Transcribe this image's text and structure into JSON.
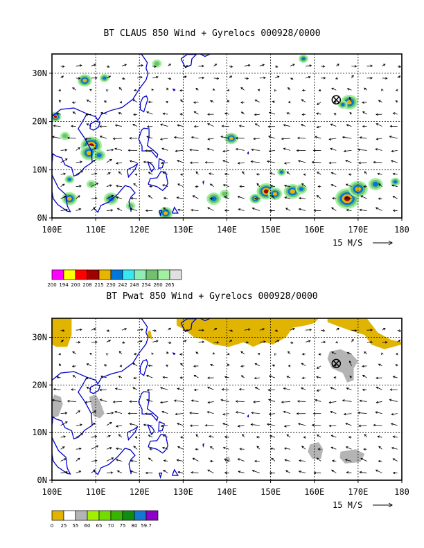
{
  "panels": [
    {
      "title": "BT CLAUS 850 Wind + Gyrelocs 000928/0000",
      "lat_labels": [
        "30N",
        "20N",
        "10N",
        "0N"
      ],
      "lon_labels": [
        "100E",
        "110E",
        "120E",
        "130E",
        "140E",
        "150E",
        "160E",
        "170E",
        "180"
      ],
      "vector_scale_label": "15 M/S",
      "legend": {
        "labels": [
          "200",
          "194",
          "200",
          "208",
          "215",
          "230",
          "242",
          "248",
          "254",
          "260",
          "265"
        ],
        "colors": [
          "#ff00ff",
          "#ffff00",
          "#ff0000",
          "#a00000",
          "#e8b400",
          "#0078d8",
          "#38e8f0",
          "#90ecb4",
          "#70c070",
          "#a0f0a0",
          "#e0e0e0"
        ]
      },
      "cyclone": {
        "lon": 165,
        "lat": 24.5
      }
    },
    {
      "title": "BT Pwat 850 Wind + Gyrelocs 000928/0000",
      "lat_labels": [
        "30N",
        "20N",
        "10N",
        "0N"
      ],
      "lon_labels": [
        "100E",
        "110E",
        "120E",
        "130E",
        "140E",
        "150E",
        "160E",
        "170E",
        "180"
      ],
      "vector_scale_label": "15 M/S",
      "legend": {
        "labels": [
          "0",
          "25",
          "55",
          "60",
          "65",
          "70",
          "75",
          "80",
          "59.7"
        ],
        "colors": [
          "#e0b400",
          "#ffffff",
          "#b4b4b4",
          "#a0f000",
          "#70dc00",
          "#38b400",
          "#108c10",
          "#1478d2",
          "#8c00c8"
        ]
      },
      "cyclone": {
        "lon": 165,
        "lat": 24.5
      }
    }
  ],
  "colors": {
    "coast": "#0000cc",
    "grid": "#000000"
  }
}
